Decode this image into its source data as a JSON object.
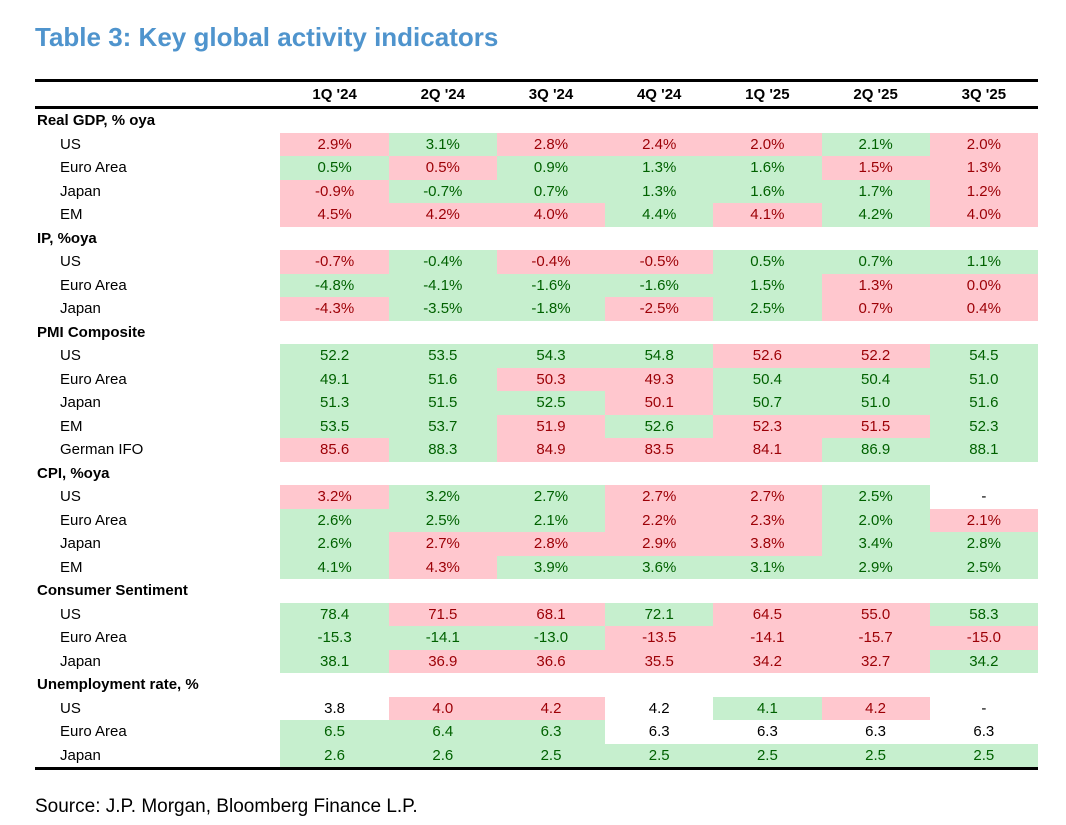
{
  "title": "Table 3: Key global activity indicators",
  "source": "Source: J.P. Morgan, Bloomberg Finance L.P.",
  "colors": {
    "title_color": "#4f94cd",
    "pink_fill": "#ffc7ce",
    "pink_text": "#9c0006",
    "green_fill": "#c6efce",
    "green_text": "#006100",
    "plain_text": "#000000",
    "rule_color": "#000000"
  },
  "chart_data": {
    "type": "table",
    "title": "Table 3: Key global activity indicators",
    "columns": [
      "1Q '24",
      "2Q '24",
      "3Q '24",
      "4Q '24",
      "1Q '25",
      "2Q '25",
      "3Q '25"
    ],
    "fill_values": [
      "pink",
      "green",
      "none"
    ],
    "sections": [
      {
        "label": "Real GDP, % oya",
        "rows": [
          {
            "label": "US",
            "values": [
              "2.9%",
              "3.1%",
              "2.8%",
              "2.4%",
              "2.0%",
              "2.1%",
              "2.0%"
            ],
            "fills": [
              "pink",
              "green",
              "pink",
              "pink",
              "pink",
              "green",
              "pink"
            ]
          },
          {
            "label": "Euro Area",
            "values": [
              "0.5%",
              "0.5%",
              "0.9%",
              "1.3%",
              "1.6%",
              "1.5%",
              "1.3%"
            ],
            "fills": [
              "green",
              "pink",
              "green",
              "green",
              "green",
              "pink",
              "pink"
            ]
          },
          {
            "label": "Japan",
            "values": [
              "-0.9%",
              "-0.7%",
              "0.7%",
              "1.3%",
              "1.6%",
              "1.7%",
              "1.2%"
            ],
            "fills": [
              "pink",
              "green",
              "green",
              "green",
              "green",
              "green",
              "pink"
            ]
          },
          {
            "label": "EM",
            "values": [
              "4.5%",
              "4.2%",
              "4.0%",
              "4.4%",
              "4.1%",
              "4.2%",
              "4.0%"
            ],
            "fills": [
              "pink",
              "pink",
              "pink",
              "green",
              "pink",
              "green",
              "pink"
            ]
          }
        ]
      },
      {
        "label": "IP, %oya",
        "rows": [
          {
            "label": "US",
            "values": [
              "-0.7%",
              "-0.4%",
              "-0.4%",
              "-0.5%",
              "0.5%",
              "0.7%",
              "1.1%"
            ],
            "fills": [
              "pink",
              "green",
              "pink",
              "pink",
              "green",
              "green",
              "green"
            ]
          },
          {
            "label": "Euro Area",
            "values": [
              "-4.8%",
              "-4.1%",
              "-1.6%",
              "-1.6%",
              "1.5%",
              "1.3%",
              "0.0%"
            ],
            "fills": [
              "green",
              "green",
              "green",
              "green",
              "green",
              "pink",
              "pink"
            ]
          },
          {
            "label": "Japan",
            "values": [
              "-4.3%",
              "-3.5%",
              "-1.8%",
              "-2.5%",
              "2.5%",
              "0.7%",
              "0.4%"
            ],
            "fills": [
              "pink",
              "green",
              "green",
              "pink",
              "green",
              "pink",
              "pink"
            ]
          }
        ]
      },
      {
        "label": "PMI Composite",
        "rows": [
          {
            "label": "US",
            "values": [
              "52.2",
              "53.5",
              "54.3",
              "54.8",
              "52.6",
              "52.2",
              "54.5"
            ],
            "fills": [
              "green",
              "green",
              "green",
              "green",
              "pink",
              "pink",
              "green"
            ]
          },
          {
            "label": "Euro Area",
            "values": [
              "49.1",
              "51.6",
              "50.3",
              "49.3",
              "50.4",
              "50.4",
              "51.0"
            ],
            "fills": [
              "green",
              "green",
              "pink",
              "pink",
              "green",
              "green",
              "green"
            ]
          },
          {
            "label": "Japan",
            "values": [
              "51.3",
              "51.5",
              "52.5",
              "50.1",
              "50.7",
              "51.0",
              "51.6"
            ],
            "fills": [
              "green",
              "green",
              "green",
              "pink",
              "green",
              "green",
              "green"
            ]
          },
          {
            "label": "EM",
            "values": [
              "53.5",
              "53.7",
              "51.9",
              "52.6",
              "52.3",
              "51.5",
              "52.3"
            ],
            "fills": [
              "green",
              "green",
              "pink",
              "green",
              "pink",
              "pink",
              "green"
            ]
          },
          {
            "label": "German IFO",
            "values": [
              "85.6",
              "88.3",
              "84.9",
              "83.5",
              "84.1",
              "86.9",
              "88.1"
            ],
            "fills": [
              "pink",
              "green",
              "pink",
              "pink",
              "pink",
              "green",
              "green"
            ]
          }
        ]
      },
      {
        "label": "CPI, %oya",
        "rows": [
          {
            "label": "US",
            "values": [
              "3.2%",
              "3.2%",
              "2.7%",
              "2.7%",
              "2.7%",
              "2.5%",
              "-"
            ],
            "fills": [
              "pink",
              "green",
              "green",
              "pink",
              "pink",
              "green",
              "none"
            ]
          },
          {
            "label": "Euro Area",
            "values": [
              "2.6%",
              "2.5%",
              "2.1%",
              "2.2%",
              "2.3%",
              "2.0%",
              "2.1%"
            ],
            "fills": [
              "green",
              "green",
              "green",
              "pink",
              "pink",
              "green",
              "pink"
            ]
          },
          {
            "label": "Japan",
            "values": [
              "2.6%",
              "2.7%",
              "2.8%",
              "2.9%",
              "3.8%",
              "3.4%",
              "2.8%"
            ],
            "fills": [
              "green",
              "pink",
              "pink",
              "pink",
              "pink",
              "green",
              "green"
            ]
          },
          {
            "label": "EM",
            "values": [
              "4.1%",
              "4.3%",
              "3.9%",
              "3.6%",
              "3.1%",
              "2.9%",
              "2.5%"
            ],
            "fills": [
              "green",
              "pink",
              "green",
              "green",
              "green",
              "green",
              "green"
            ]
          }
        ]
      },
      {
        "label": "Consumer Sentiment",
        "rows": [
          {
            "label": "US",
            "values": [
              "78.4",
              "71.5",
              "68.1",
              "72.1",
              "64.5",
              "55.0",
              "58.3"
            ],
            "fills": [
              "green",
              "pink",
              "pink",
              "green",
              "pink",
              "pink",
              "green"
            ]
          },
          {
            "label": "Euro Area",
            "values": [
              "-15.3",
              "-14.1",
              "-13.0",
              "-13.5",
              "-14.1",
              "-15.7",
              "-15.0"
            ],
            "fills": [
              "green",
              "green",
              "green",
              "pink",
              "pink",
              "pink",
              "pink"
            ]
          },
          {
            "label": "Japan",
            "values": [
              "38.1",
              "36.9",
              "36.6",
              "35.5",
              "34.2",
              "32.7",
              "34.2"
            ],
            "fills": [
              "green",
              "pink",
              "pink",
              "pink",
              "pink",
              "pink",
              "green"
            ]
          }
        ]
      },
      {
        "label": "Unemployment rate, %",
        "rows": [
          {
            "label": "US",
            "values": [
              "3.8",
              "4.0",
              "4.2",
              "4.2",
              "4.1",
              "4.2",
              "-"
            ],
            "fills": [
              "none",
              "pink",
              "pink",
              "none",
              "green",
              "pink",
              "none"
            ]
          },
          {
            "label": "Euro Area",
            "values": [
              "6.5",
              "6.4",
              "6.3",
              "6.3",
              "6.3",
              "6.3",
              "6.3"
            ],
            "fills": [
              "green",
              "green",
              "green",
              "none",
              "none",
              "none",
              "none"
            ]
          },
          {
            "label": "Japan",
            "values": [
              "2.6",
              "2.6",
              "2.5",
              "2.5",
              "2.5",
              "2.5",
              "2.5"
            ],
            "fills": [
              "green",
              "green",
              "green",
              "green",
              "green",
              "green",
              "green"
            ]
          }
        ]
      }
    ]
  }
}
